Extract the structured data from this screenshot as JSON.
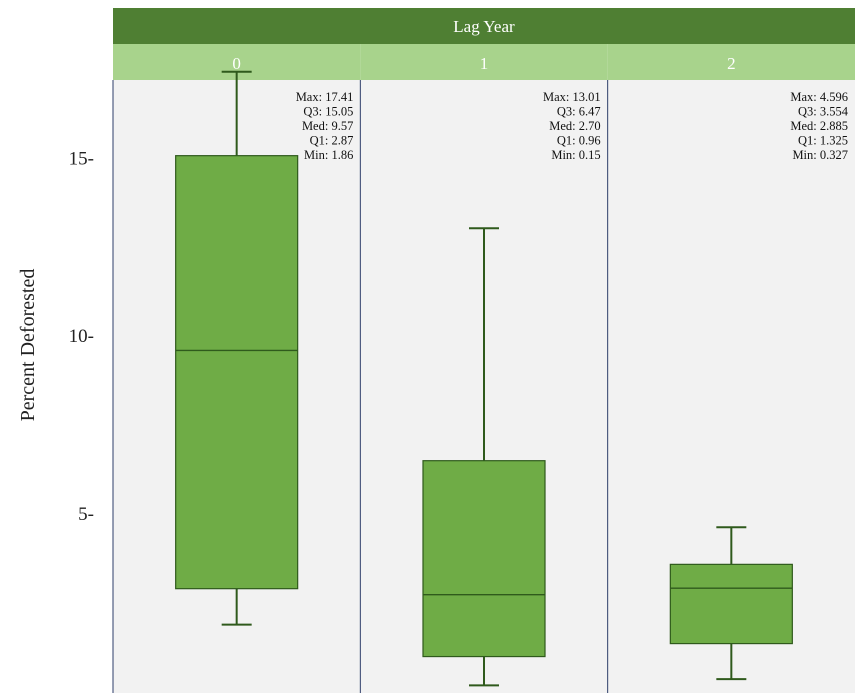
{
  "chart_data": {
    "type": "boxplot",
    "title": "Lag Year",
    "ylabel": "Percent Deforested",
    "yticks": [
      5,
      10,
      15
    ],
    "ytick_labels": [
      "5-",
      "10-",
      "15-"
    ],
    "ylim": [
      0,
      19.5
    ],
    "grid": false,
    "panels": [
      {
        "label": "0",
        "box": {
          "min": 1.86,
          "q1": 2.87,
          "median": 9.57,
          "q3": 15.05,
          "max": 17.41
        },
        "stats_text": [
          "Max: 17.41",
          "Q3: 15.05",
          "Med: 9.57",
          "Q1: 2.87",
          "Min: 1.86"
        ]
      },
      {
        "label": "1",
        "box": {
          "min": 0.15,
          "q1": 0.96,
          "median": 2.7,
          "q3": 6.47,
          "max": 13.01
        },
        "stats_text": [
          "Max: 13.01",
          "Q3: 6.47",
          "Med: 2.70",
          "Q1: 0.96",
          "Min: 0.15"
        ]
      },
      {
        "label": "2",
        "box": {
          "min": 0.327,
          "q1": 1.325,
          "median": 2.885,
          "q3": 3.554,
          "max": 4.596
        },
        "stats_text": [
          "Max: 4.596",
          "Q3: 3.554",
          "Med: 2.885",
          "Q1: 1.325",
          "Min: 0.327"
        ]
      }
    ],
    "colors": {
      "header_dark": "#4f7f33",
      "header_light": "#a8d38c",
      "box_fill": "#6fac46",
      "line": "#2f5a1c",
      "panel_bg": "#f2f2f2",
      "panel_border": "#2e3e6a"
    }
  }
}
